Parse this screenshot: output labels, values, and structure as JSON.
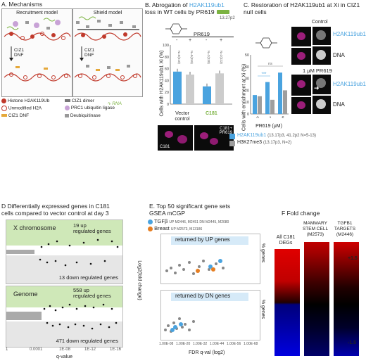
{
  "panelA": {
    "title": "A. Mechanisms",
    "recruitment": "Recruitment model",
    "shield": "Shield model",
    "ciz1_dnf_1": "CIZ1\nDNF",
    "ciz1_dnf_2": "CIZ1\nDNF",
    "legend": {
      "histone": "Histone H2AK119Ub",
      "unmod": "Unmodified H2A",
      "dnf": "CIZ1 DNF",
      "dimer": "CIZ1 dimer",
      "rna": "RNA",
      "prc1": "PRC1 ubiquitin ligase",
      "dub": "Deubiquitinase"
    }
  },
  "panelB": {
    "title_pre": "B. Abrogation of ",
    "title_hl": "H2AK119ub1",
    "title_post": "loss in WT cells by PR619",
    "compound": "13.27p2",
    "ylabel": "Cells with H2AK119ub1 Xi (%)",
    "pr619": "PR619",
    "minus": "-",
    "plus": "+",
    "group1": "Vector\ncontrol",
    "group2": "C181",
    "nlabels": [
      "N=5(510)",
      "N=5(459)",
      "N=2(338)",
      "N=2(323)"
    ],
    "img1": "C181",
    "img2": "C181+\nPR619",
    "ticks": [
      "100",
      "80",
      "60",
      "40",
      "20",
      "0"
    ]
  },
  "panelC": {
    "title_pre": "C. Restoration of H2AK119ub1 at Xi",
    "title_post": " in CIZ1 null cells",
    "ylabel": "Cells with enrichment at Xi (%)",
    "xlabel": "PR619 (μM)",
    "ticks": [
      "50",
      "40",
      "30",
      "20",
      "10",
      "0"
    ],
    "xticks": [
      "0",
      "1",
      "5"
    ],
    "ns": "ns",
    "stars": "***",
    "legend1": "H2AK119ub1",
    "legend1_note": "(13.17p3, 41.2p2 N=5-13)",
    "legend2": "H3K27me3",
    "legend2_note": "(13.17p3, N=2)",
    "control": "Control",
    "pr_label": "1 μM PR619",
    "img_lbl1": "H2AK119ub1",
    "img_lbl2": "DNA",
    "img_lbl3": "H2AK119ub1",
    "img_lbl4": "DNA"
  },
  "panelD": {
    "title": "D Differentially expressed genes in C181\ncells compared to vector control at day 3",
    "xchrom": "X chromosome",
    "x_up": "19 up\nregulated genes",
    "x_down": "13 down regulated genes",
    "genome": "Genome",
    "g_up": "558 up\nregulated genes",
    "g_down": "471 down regulated genes",
    "xlabel": "q-value",
    "ylabel": "Log2(fold change)",
    "xticks": [
      "1",
      "0.0001",
      "1E-08",
      "1E-12",
      "1E-16"
    ],
    "yticks_top": [
      "4",
      "3",
      "2",
      "1",
      "0",
      "-1",
      "-2",
      "-3"
    ],
    "yticks_bot": [
      "5",
      "3",
      "1",
      "-1",
      "-3",
      "-5"
    ]
  },
  "panelE": {
    "title": "E. Top 50 significant gene sets\nGSEA mCGP",
    "tgfb": "TGFβ",
    "tgfb_note": "UP M2446, M2451 DN M2445, M2080",
    "breast": "Breast",
    "breast_note": "UP M2573, M13186",
    "up_label": "returned by UP genes",
    "dn_label": "returned by DN genes",
    "xlabel": "FDR q-val (log2)",
    "ylabel": "% genes",
    "xticks": [
      "1.00E-08",
      "1.00E-20",
      "1.00E-32",
      "1.00E-44",
      "1.00E-56",
      "1.00E-68"
    ],
    "yticks": [
      "50",
      "40",
      "30",
      "20",
      "10",
      "0"
    ]
  },
  "panelF": {
    "title": "F  Fold change",
    "col1": "All C181\nDEGs",
    "col2": "MAMMARY\nSTEM CELL\n(M2573)",
    "col3": "TGFB1\nTARGETS\n(M2446)",
    "top": "+1.5",
    "bottom": "-1.5"
  },
  "chart_data": [
    {
      "type": "bar",
      "panel": "B",
      "categories": [
        "Vector control -",
        "Vector control +",
        "C181 -",
        "C181 +"
      ],
      "values": [
        55,
        50,
        30,
        52
      ],
      "ylim": [
        0,
        100
      ],
      "ylabel": "Cells with H2AK119ub1 Xi (%)"
    },
    {
      "type": "bar",
      "panel": "C",
      "categories": [
        "0",
        "1",
        "5"
      ],
      "series": [
        {
          "name": "H2AK119ub1",
          "values": [
            16,
            27,
            35
          ]
        },
        {
          "name": "H3K27me3",
          "values": [
            15,
            12,
            20
          ]
        }
      ],
      "ylim": [
        0,
        50
      ],
      "xlabel": "PR619 (μM)",
      "ylabel": "Cells with enrichment at Xi (%)"
    }
  ]
}
